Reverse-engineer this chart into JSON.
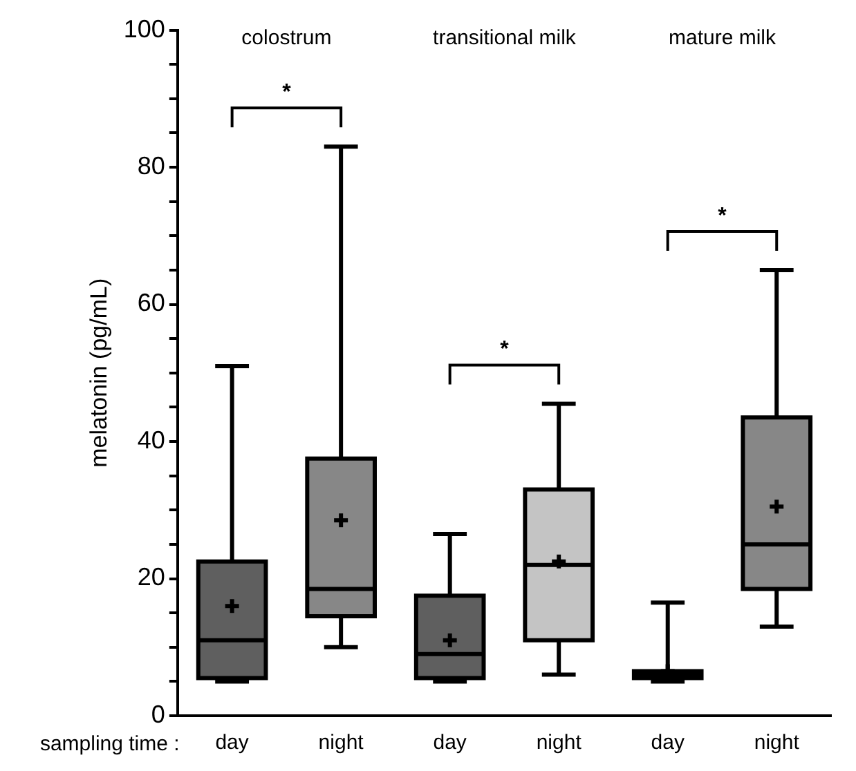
{
  "chart_data": {
    "type": "box",
    "xlabel": "sampling time :",
    "ylabel": "melatonin (pg/mL)",
    "categories": [
      "day",
      "night",
      "day",
      "night",
      "day",
      "night"
    ],
    "boxes": [
      {
        "low": 5,
        "q1": 5.5,
        "median": 11,
        "q3": 22.5,
        "high": 51,
        "mean": 16
      },
      {
        "low": 10,
        "q1": 14.5,
        "median": 18.5,
        "q3": 37.5,
        "high": 83,
        "mean": 28.5
      },
      {
        "low": 5,
        "q1": 5.5,
        "median": 9,
        "q3": 17.5,
        "high": 26.5,
        "mean": 11
      },
      {
        "low": 6,
        "q1": 11,
        "median": 22,
        "q3": 33,
        "high": 45.5,
        "mean": 22.5
      },
      {
        "low": 5,
        "q1": 5.5,
        "median": 6,
        "q3": 6.5,
        "high": 16.5,
        "mean": 6.5
      },
      {
        "low": 13,
        "q1": 18.5,
        "median": 25,
        "q3": 43.5,
        "high": 65,
        "mean": 30.5
      }
    ],
    "colors": [
      "#5f5f5f",
      "#878787",
      "#5f5f5f",
      "#c4c4c4",
      "#5f5f5f",
      "#878787"
    ],
    "ylim": [
      0,
      100
    ],
    "yticks": [
      0,
      {
        "value": 5,
        "label": null
      },
      {
        "value": 10,
        "label": null
      },
      {
        "value": 15,
        "label": null
      },
      20,
      {
        "value": 25,
        "label": null
      },
      {
        "value": 30,
        "label": null
      },
      {
        "value": 35,
        "label": null
      },
      40,
      {
        "value": 45,
        "label": null
      },
      {
        "value": 50,
        "label": null
      },
      {
        "value": 55,
        "label": null
      },
      60,
      {
        "value": 65,
        "label": null
      },
      {
        "value": 70,
        "label": null
      },
      {
        "value": 75,
        "label": null
      },
      80,
      {
        "value": 85,
        "label": null
      },
      {
        "value": 90,
        "label": null
      },
      {
        "value": 95,
        "label": null
      },
      100
    ],
    "annotations": [
      "colostrum",
      "transitional milk",
      "mature milk",
      "*",
      "*",
      "*"
    ],
    "grid": false,
    "legend": false
  }
}
